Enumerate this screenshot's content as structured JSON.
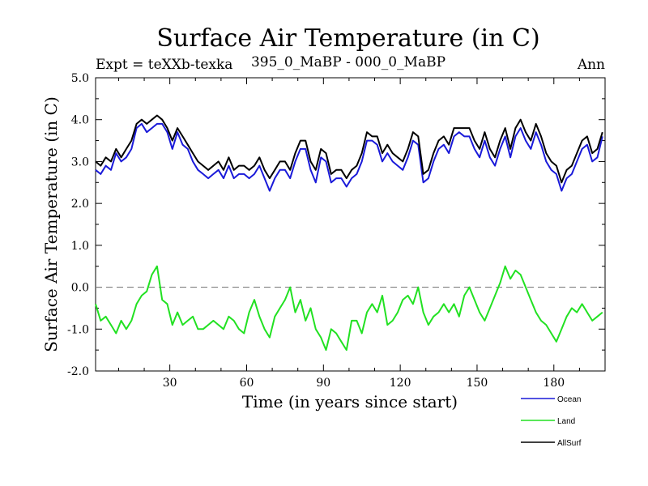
{
  "chart_data": {
    "type": "line",
    "title": "Surface Air Temperature (in C)",
    "subtitle_left": "Expt = teXXb-texka",
    "subtitle_center": "395_0_MaBP - 000_0_MaBP",
    "subtitle_right": "Ann",
    "xlabel": "Time (in years since start)",
    "ylabel": "Surface Air Temperature (in C)",
    "xlim": [
      1,
      200
    ],
    "ylim": [
      -2.0,
      5.0
    ],
    "xticks": [
      30,
      60,
      90,
      120,
      150,
      180
    ],
    "xtick_labels": [
      "30",
      "60",
      "90",
      "120",
      "150",
      "180"
    ],
    "yticks": [
      -2.0,
      -1.0,
      0.0,
      1.0,
      2.0,
      3.0,
      4.0,
      5.0
    ],
    "ytick_labels": [
      "-2.0",
      "-1.0",
      "0.0",
      "1.0",
      "2.0",
      "3.0",
      "4.0",
      "5.0"
    ],
    "reference_line": {
      "y": 0.0,
      "style": "dashed",
      "color": "#808080"
    },
    "x": [
      1,
      3,
      5,
      7,
      9,
      11,
      13,
      15,
      17,
      19,
      21,
      23,
      25,
      27,
      29,
      31,
      33,
      35,
      37,
      39,
      41,
      43,
      45,
      47,
      49,
      51,
      53,
      55,
      57,
      59,
      61,
      63,
      65,
      67,
      69,
      71,
      73,
      75,
      77,
      79,
      81,
      83,
      85,
      87,
      89,
      91,
      93,
      95,
      97,
      99,
      101,
      103,
      105,
      107,
      109,
      111,
      113,
      115,
      117,
      119,
      121,
      123,
      125,
      127,
      129,
      131,
      133,
      135,
      137,
      139,
      141,
      143,
      145,
      147,
      149,
      151,
      153,
      155,
      157,
      159,
      161,
      163,
      165,
      167,
      169,
      171,
      173,
      175,
      177,
      179,
      181,
      183,
      185,
      187,
      189,
      191,
      193,
      195,
      197,
      199
    ],
    "series": [
      {
        "name": "Ocean",
        "color": "#1a1ad9",
        "values": [
          2.8,
          2.7,
          2.9,
          2.8,
          3.2,
          3.0,
          3.1,
          3.3,
          3.8,
          3.9,
          3.7,
          3.8,
          3.9,
          3.9,
          3.7,
          3.3,
          3.7,
          3.4,
          3.3,
          3.0,
          2.8,
          2.7,
          2.6,
          2.7,
          2.8,
          2.6,
          2.9,
          2.6,
          2.7,
          2.7,
          2.6,
          2.7,
          2.9,
          2.6,
          2.3,
          2.6,
          2.8,
          2.8,
          2.6,
          3.0,
          3.3,
          3.3,
          2.8,
          2.5,
          3.1,
          3.0,
          2.5,
          2.6,
          2.6,
          2.4,
          2.6,
          2.7,
          3.0,
          3.5,
          3.5,
          3.4,
          3.0,
          3.2,
          3.0,
          2.9,
          2.8,
          3.1,
          3.5,
          3.4,
          2.5,
          2.6,
          3.0,
          3.3,
          3.4,
          3.2,
          3.6,
          3.7,
          3.6,
          3.6,
          3.3,
          3.1,
          3.5,
          3.1,
          2.9,
          3.3,
          3.6,
          3.1,
          3.6,
          3.8,
          3.5,
          3.3,
          3.7,
          3.4,
          3.0,
          2.8,
          2.7,
          2.3,
          2.6,
          2.7,
          3.0,
          3.3,
          3.4,
          3.0,
          3.1,
          3.6
        ],
        "legend": "Ocean"
      },
      {
        "name": "Land",
        "color": "#22e122",
        "values": [
          -0.4,
          -0.8,
          -0.7,
          -0.9,
          -1.1,
          -0.8,
          -1.0,
          -0.8,
          -0.4,
          -0.2,
          -0.1,
          0.3,
          0.5,
          -0.3,
          -0.4,
          -0.9,
          -0.6,
          -0.9,
          -0.8,
          -0.7,
          -1.0,
          -1.0,
          -0.9,
          -0.8,
          -0.9,
          -1.0,
          -0.7,
          -0.8,
          -1.0,
          -1.1,
          -0.6,
          -0.3,
          -0.7,
          -1.0,
          -1.2,
          -0.7,
          -0.5,
          -0.3,
          0.0,
          -0.6,
          -0.3,
          -0.8,
          -0.5,
          -1.0,
          -1.2,
          -1.5,
          -1.0,
          -1.1,
          -1.3,
          -1.5,
          -0.8,
          -0.8,
          -1.1,
          -0.6,
          -0.4,
          -0.6,
          -0.2,
          -0.9,
          -0.8,
          -0.6,
          -0.3,
          -0.2,
          -0.4,
          0.0,
          -0.6,
          -0.9,
          -0.7,
          -0.6,
          -0.4,
          -0.6,
          -0.4,
          -0.7,
          -0.2,
          0.0,
          -0.3,
          -0.6,
          -0.8,
          -0.5,
          -0.2,
          0.1,
          0.5,
          0.2,
          0.4,
          0.3,
          0.0,
          -0.3,
          -0.6,
          -0.8,
          -0.9,
          -1.1,
          -1.3,
          -1.0,
          -0.7,
          -0.5,
          -0.6,
          -0.4,
          -0.6,
          -0.8,
          -0.7,
          -0.6
        ],
        "legend": "Land"
      },
      {
        "name": "AllSurf",
        "color": "#000000",
        "values": [
          3.0,
          2.9,
          3.1,
          3.0,
          3.3,
          3.1,
          3.3,
          3.5,
          3.9,
          4.0,
          3.9,
          4.0,
          4.1,
          4.0,
          3.8,
          3.5,
          3.8,
          3.6,
          3.4,
          3.2,
          3.0,
          2.9,
          2.8,
          2.9,
          3.0,
          2.8,
          3.1,
          2.8,
          2.9,
          2.9,
          2.8,
          2.9,
          3.1,
          2.8,
          2.6,
          2.8,
          3.0,
          3.0,
          2.8,
          3.2,
          3.5,
          3.5,
          3.0,
          2.8,
          3.3,
          3.2,
          2.7,
          2.8,
          2.8,
          2.6,
          2.8,
          2.9,
          3.2,
          3.7,
          3.6,
          3.6,
          3.2,
          3.4,
          3.2,
          3.1,
          3.0,
          3.3,
          3.7,
          3.6,
          2.7,
          2.8,
          3.2,
          3.5,
          3.6,
          3.4,
          3.8,
          3.8,
          3.8,
          3.8,
          3.5,
          3.3,
          3.7,
          3.3,
          3.1,
          3.5,
          3.8,
          3.3,
          3.8,
          4.0,
          3.7,
          3.5,
          3.9,
          3.6,
          3.2,
          3.0,
          2.9,
          2.5,
          2.8,
          2.9,
          3.2,
          3.5,
          3.6,
          3.2,
          3.3,
          3.7
        ],
        "legend": "AllSurf"
      }
    ],
    "legend_position": "bottom-right"
  }
}
